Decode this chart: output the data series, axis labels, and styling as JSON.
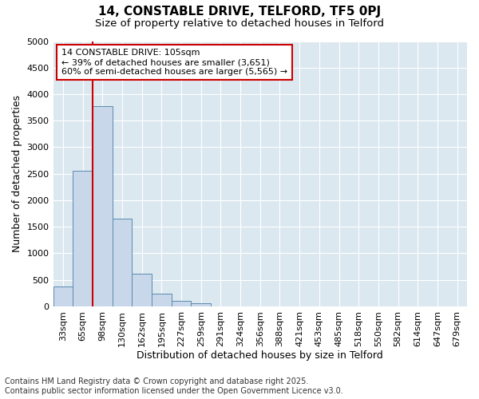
{
  "title_line1": "14, CONSTABLE DRIVE, TELFORD, TF5 0PJ",
  "title_line2": "Size of property relative to detached houses in Telford",
  "xlabel": "Distribution of detached houses by size in Telford",
  "ylabel": "Number of detached properties",
  "bar_color": "#c8d8ea",
  "bar_edge_color": "#5a8ab0",
  "background_color": "#dce8f0",
  "categories": [
    "33sqm",
    "65sqm",
    "98sqm",
    "130sqm",
    "162sqm",
    "195sqm",
    "227sqm",
    "259sqm",
    "291sqm",
    "324sqm",
    "356sqm",
    "388sqm",
    "421sqm",
    "453sqm",
    "485sqm",
    "518sqm",
    "550sqm",
    "582sqm",
    "614sqm",
    "647sqm",
    "679sqm"
  ],
  "values": [
    380,
    2550,
    3780,
    1650,
    620,
    240,
    100,
    65,
    0,
    0,
    0,
    0,
    0,
    0,
    0,
    0,
    0,
    0,
    0,
    0,
    0
  ],
  "vline_x": 2.0,
  "vline_color": "#cc0000",
  "annotation_line1": "14 CONSTABLE DRIVE: 105sqm",
  "annotation_line2": "← 39% of detached houses are smaller (3,651)",
  "annotation_line3": "60% of semi-detached houses are larger (5,565) →",
  "annotation_box_color": "#cc0000",
  "ylim": [
    0,
    5000
  ],
  "yticks": [
    0,
    500,
    1000,
    1500,
    2000,
    2500,
    3000,
    3500,
    4000,
    4500,
    5000
  ],
  "footer_line1": "Contains HM Land Registry data © Crown copyright and database right 2025.",
  "footer_line2": "Contains public sector information licensed under the Open Government Licence v3.0.",
  "title_fontsize": 11,
  "subtitle_fontsize": 9.5,
  "axis_label_fontsize": 9,
  "tick_fontsize": 8,
  "annotation_fontsize": 8,
  "footer_fontsize": 7
}
